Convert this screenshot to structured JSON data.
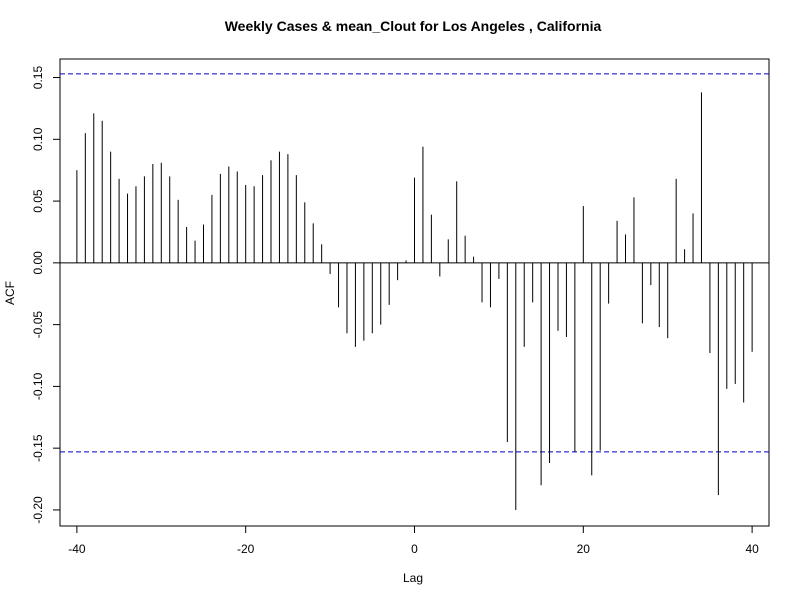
{
  "chart_data": {
    "type": "bar",
    "title": "Weekly Cases & mean_Clout for Los Angeles , California",
    "xlabel": "Lag",
    "ylabel": "ACF",
    "xlim": [
      -42,
      42
    ],
    "ylim": [
      -0.213,
      0.165
    ],
    "x_ticks": [
      -40,
      -20,
      0,
      20,
      40
    ],
    "x_tick_labels": [
      "-40",
      "-20",
      "0",
      "20",
      "40"
    ],
    "y_ticks": [
      -0.2,
      -0.15,
      -0.1,
      -0.05,
      0.0,
      0.05,
      0.1,
      0.15
    ],
    "y_tick_labels": [
      "-0.20",
      "-0.15",
      "-0.10",
      "-0.05",
      "0.00",
      "0.05",
      "0.10",
      "0.15"
    ],
    "confidence_bound": 0.153,
    "bound_color": "#0000cc",
    "bar_color": "#000000",
    "lags": [
      -40,
      -39,
      -38,
      -37,
      -36,
      -35,
      -34,
      -33,
      -32,
      -31,
      -30,
      -29,
      -28,
      -27,
      -26,
      -25,
      -24,
      -23,
      -22,
      -21,
      -20,
      -19,
      -18,
      -17,
      -16,
      -15,
      -14,
      -13,
      -12,
      -11,
      -10,
      -9,
      -8,
      -7,
      -6,
      -5,
      -4,
      -3,
      -2,
      -1,
      0,
      1,
      2,
      3,
      4,
      5,
      6,
      7,
      8,
      9,
      10,
      11,
      12,
      13,
      14,
      15,
      16,
      17,
      18,
      19,
      20,
      21,
      22,
      23,
      24,
      25,
      26,
      27,
      28,
      29,
      30,
      31,
      32,
      33,
      34,
      35,
      36,
      37,
      38,
      39,
      40
    ],
    "values": [
      0.075,
      0.105,
      0.121,
      0.115,
      0.09,
      0.068,
      0.056,
      0.062,
      0.07,
      0.08,
      0.081,
      0.07,
      0.051,
      0.029,
      0.018,
      0.031,
      0.055,
      0.072,
      0.078,
      0.074,
      0.063,
      0.062,
      0.071,
      0.083,
      0.09,
      0.088,
      0.071,
      0.049,
      0.032,
      0.015,
      -0.009,
      -0.036,
      -0.057,
      -0.068,
      -0.063,
      -0.057,
      -0.05,
      -0.034,
      -0.014,
      0.002,
      0.069,
      0.094,
      0.039,
      -0.011,
      0.019,
      0.066,
      0.022,
      0.005,
      -0.032,
      -0.036,
      -0.013,
      -0.145,
      -0.2,
      -0.068,
      -0.032,
      -0.18,
      -0.162,
      -0.055,
      -0.06,
      -0.153,
      0.046,
      -0.172,
      -0.152,
      -0.033,
      0.034,
      0.023,
      0.053,
      -0.049,
      -0.018,
      -0.052,
      -0.061,
      0.068,
      0.011,
      0.04,
      0.138,
      -0.073,
      -0.188,
      -0.102,
      -0.098,
      -0.113,
      -0.072
    ]
  }
}
